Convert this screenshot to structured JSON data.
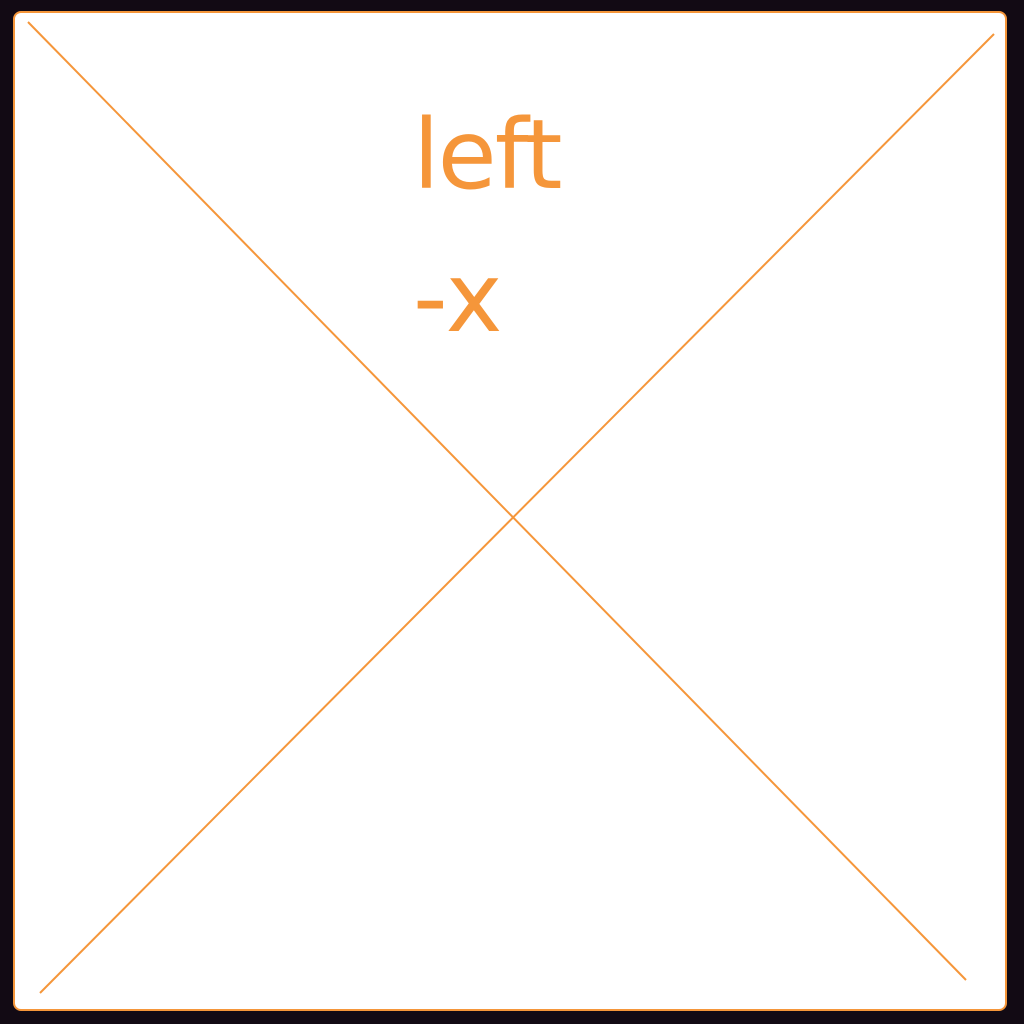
{
  "colors": {
    "background": "#120a14",
    "panel": "#ffffff",
    "accent": "#f5963a"
  },
  "placeholder": {
    "label_line_1": "left",
    "label_line_2": "-x"
  }
}
